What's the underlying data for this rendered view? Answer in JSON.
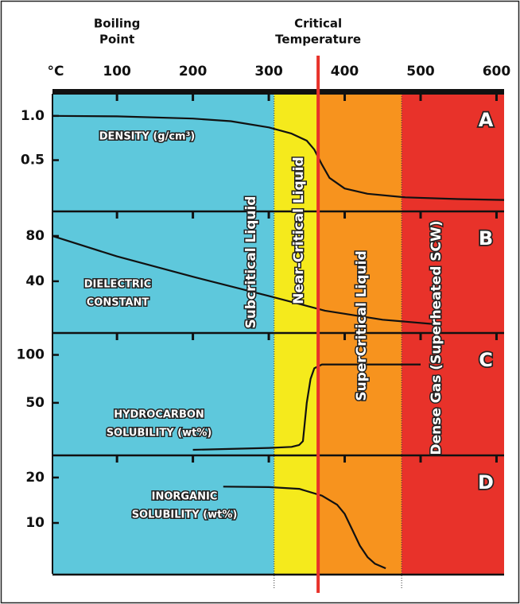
{
  "chart_data": {
    "type": "line",
    "xlabel": "°C",
    "xlim": [
      15,
      610
    ],
    "xticks": [
      100,
      200,
      300,
      400,
      500,
      600
    ],
    "annotations": [
      {
        "text": [
          "Boiling",
          "Point"
        ],
        "x": 100
      },
      {
        "text": [
          "Critical",
          "Temperature"
        ],
        "x": 365
      }
    ],
    "critical_line_color": "#e8322a",
    "regions": [
      {
        "name": "Subcritical Liquid",
        "from": 15,
        "to": 307,
        "color": "#5ec8dc"
      },
      {
        "name": "Near-Critical Liquid",
        "from": 307,
        "to": 365,
        "color": "#f5ea1c"
      },
      {
        "name": "SuperCritical Liquid",
        "from": 365,
        "to": 475,
        "color": "#f7931e"
      },
      {
        "name": "Dense Gas (Superheated SCW)",
        "from": 475,
        "to": 610,
        "color": "#e8322a"
      }
    ],
    "panels": [
      {
        "letter": "A",
        "label": [
          "DENSITY (g/cm³)"
        ],
        "ylim": [
          -0.07,
          1.25
        ],
        "yticks": [
          {
            "value": 1,
            "label": "1.0"
          },
          0.5
        ],
        "color": "#111",
        "x": [
          15,
          100,
          200,
          250,
          300,
          330,
          350,
          360,
          370,
          380,
          400,
          430,
          480,
          550,
          610
        ],
        "values": [
          1.0,
          0.995,
          0.97,
          0.94,
          0.87,
          0.8,
          0.72,
          0.62,
          0.45,
          0.3,
          0.18,
          0.12,
          0.08,
          0.06,
          0.05
        ]
      },
      {
        "letter": "B",
        "label": [
          "DIELECTRIC",
          "CONSTANT"
        ],
        "ylim": [
          -5,
          101
        ],
        "yticks": [
          80,
          40
        ],
        "color": "#111",
        "x": [
          15,
          100,
          200,
          300,
          374,
          450,
          520
        ],
        "values": [
          80,
          62,
          44,
          27,
          14,
          6,
          2
        ]
      },
      {
        "letter": "C",
        "label": [
          "HYDROCARBON",
          "SOLUBILITY (wt%)"
        ],
        "ylim": [
          -4,
          122
        ],
        "yticks": [
          100,
          50
        ],
        "color": "#111",
        "x": [
          200,
          300,
          330,
          340,
          345,
          350,
          355,
          360,
          370,
          500
        ],
        "values": [
          1,
          3,
          4,
          6,
          10,
          50,
          75,
          86,
          90,
          90
        ]
      },
      {
        "letter": "D",
        "label": [
          "INORGANIC",
          "SOLUBILITY (wt%)"
        ],
        "ylim": [
          -1.2,
          24.7
        ],
        "yticks": [
          20,
          10
        ],
        "color": "#111",
        "x": [
          240,
          300,
          340,
          370,
          390,
          400,
          410,
          420,
          430,
          440,
          454
        ],
        "values": [
          18,
          17.9,
          17.5,
          16,
          14,
          12,
          8.5,
          5,
          2.5,
          1,
          0
        ]
      }
    ]
  }
}
